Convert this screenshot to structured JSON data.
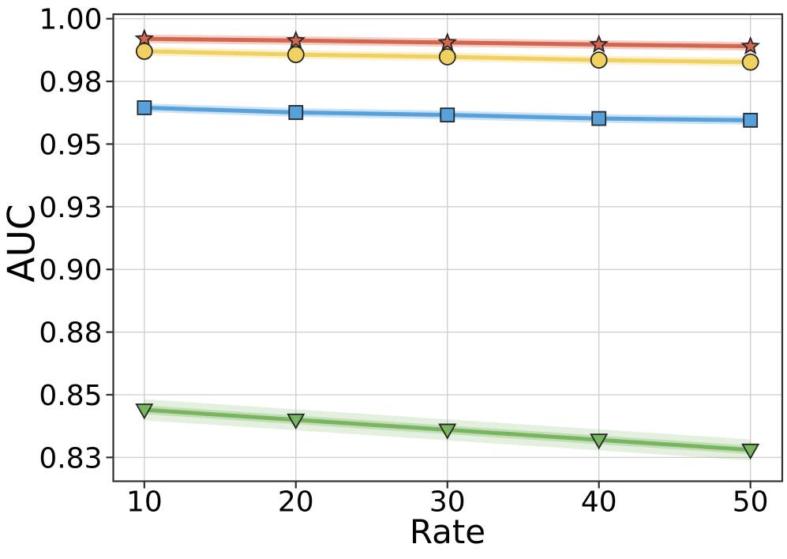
{
  "chart_data": {
    "type": "line",
    "title": "",
    "xlabel": "Rate",
    "ylabel": "AUC",
    "x": [
      10,
      20,
      30,
      40,
      50
    ],
    "xlim": [
      7.95,
      52.1
    ],
    "ylim": [
      0.8155,
      1.0018
    ],
    "grid": true,
    "legend": "none",
    "x_ticks": {
      "values": [
        10,
        20,
        30,
        40,
        50
      ],
      "labels": [
        "10",
        "20",
        "30",
        "40",
        "50"
      ]
    },
    "y_ticks": {
      "values": [
        1.0,
        0.975,
        0.95,
        0.925,
        0.9,
        0.875,
        0.85,
        0.825
      ],
      "labels": [
        "1.00",
        "0.98",
        "0.95",
        "0.93",
        "0.90",
        "0.88",
        "0.85",
        "0.83"
      ]
    },
    "series": [
      {
        "name": "red-star-series",
        "marker": "star",
        "color": "#d4664e",
        "values": [
          0.992,
          0.9913,
          0.9905,
          0.9897,
          0.989
        ],
        "band": 0.0009
      },
      {
        "name": "yellow-circle-series",
        "marker": "circle",
        "color": "#f0d05e",
        "values": [
          0.987,
          0.9857,
          0.9848,
          0.9835,
          0.9827
        ],
        "band": 0.0009
      },
      {
        "name": "blue-square-series",
        "marker": "square",
        "color": "#56a1dc",
        "values": [
          0.9645,
          0.9626,
          0.9616,
          0.9602,
          0.9595
        ],
        "band": 0.0009
      },
      {
        "name": "green-triangle-series",
        "marker": "triangle-down",
        "color": "#77b55e",
        "values": [
          0.844,
          0.84,
          0.836,
          0.832,
          0.828
        ],
        "band": 0.0042
      }
    ],
    "style": {
      "marker_edge": "#262626",
      "grid_color": "#cccccc",
      "spine_color": "#2f2f2f",
      "text_color": "#000000",
      "background": "#ffffff"
    }
  }
}
